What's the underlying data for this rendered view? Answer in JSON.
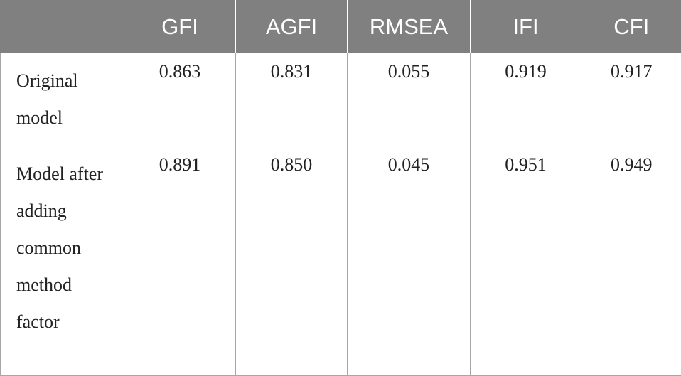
{
  "table": {
    "columns": [
      "",
      "GFI",
      "AGFI",
      "RMSEA",
      "IFI",
      "CFI"
    ],
    "rows": [
      {
        "label": "Original model",
        "values": [
          "0.863",
          "0.831",
          "0.055",
          "0.919",
          "0.917"
        ]
      },
      {
        "label": "Model after adding common method factor",
        "values": [
          "0.891",
          "0.850",
          "0.045",
          "0.951",
          "0.949"
        ]
      }
    ]
  },
  "colors": {
    "header_bg": "#808080",
    "header_text": "#ffffff",
    "border": "#a6a6a6",
    "body_text": "#222222"
  }
}
